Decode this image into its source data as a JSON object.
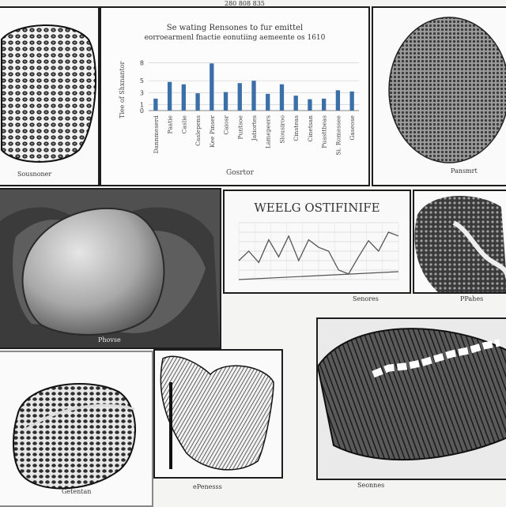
{
  "header": {
    "text": "280 808 835"
  },
  "bar_panel": {
    "title_line1": "Se wating Rensones to fur emittel",
    "title_line2": "eorroearmenl fnactie eonutiing aemeente os 1610",
    "xlabel": "Gosrtor",
    "ylabel": "Tiee of Shxnantor"
  },
  "line_panel": {
    "title": "WEELG OSTIFINIFE"
  },
  "captions": {
    "top_left": "Sousnoner",
    "top_right": "Pansmrt",
    "heart": "Phovse",
    "mid_right_top": "Senores",
    "mid_right_top2": "PPahes",
    "bottom_left": "Getentan",
    "bottom_center": "ePenesss",
    "bottom_right": "Seonnes"
  },
  "chart_data": [
    {
      "type": "bar",
      "title": "Se wating Rensones to fur emittel eorroearmenl fnactie eonutiing aemeente os 1610",
      "xlabel": "Gosrtor",
      "ylabel": "Tiee of Shxnantor",
      "ylim": [
        0,
        9
      ],
      "yticks": [
        0,
        1,
        3,
        5,
        8
      ],
      "categories": [
        "Dannmeserd",
        "Paatie",
        "Caslie",
        "Caslepens",
        "Kee Pinser",
        "Caiosr",
        "Puntsoe",
        "Jatiortes",
        "Lamepeers",
        "Slousiroo",
        "Cinsteas",
        "Cinetsan",
        "Puasttbeas",
        "Si. Romessee",
        "Gaseose"
      ],
      "values": [
        2.0,
        4.8,
        4.4,
        2.9,
        7.9,
        3.1,
        4.6,
        5.0,
        2.8,
        4.4,
        2.5,
        1.9,
        2.0,
        3.4,
        3.2
      ],
      "color": "#3b6fa8"
    },
    {
      "type": "line",
      "title": "WEELG OSTIFINIFE",
      "x": [
        0,
        1,
        2,
        3,
        4,
        5,
        6,
        7,
        8,
        9,
        10,
        11,
        12,
        13,
        14,
        15,
        16
      ],
      "y": [
        2.0,
        3.0,
        1.8,
        4.2,
        2.4,
        4.6,
        2.0,
        4.2,
        3.4,
        3.0,
        1.0,
        0.6,
        2.4,
        4.1,
        3.0,
        5.0,
        4.6
      ],
      "ylim": [
        0,
        6
      ],
      "color": "#555555"
    }
  ]
}
